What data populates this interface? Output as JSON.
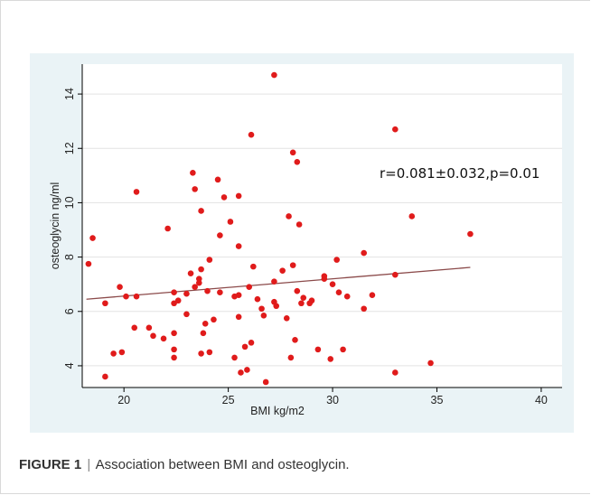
{
  "caption": {
    "label": "FIGURE 1",
    "separator": "|",
    "text": "Association between BMI and osteoglycin."
  },
  "chart_data": {
    "type": "scatter",
    "xlabel": "BMI kg/m2",
    "ylabel": "osteoglycin ng/ml",
    "xlim": [
      18,
      41
    ],
    "ylim": [
      3.2,
      15.1
    ],
    "xticks": [
      20,
      25,
      30,
      35,
      40
    ],
    "yticks": [
      4,
      6,
      8,
      10,
      12,
      14
    ],
    "grid": true,
    "annotation": "r=0.081±0.032,p=0.01",
    "point_color": "#e01b1b",
    "fit_line_color": "#8b4a4a",
    "fit_line": {
      "x": [
        18.2,
        36.6
      ],
      "y": [
        6.45,
        7.62
      ]
    },
    "points": [
      {
        "x": 18.3,
        "y": 7.75
      },
      {
        "x": 18.5,
        "y": 8.7
      },
      {
        "x": 19.1,
        "y": 3.6
      },
      {
        "x": 19.1,
        "y": 6.3
      },
      {
        "x": 19.5,
        "y": 4.45
      },
      {
        "x": 19.8,
        "y": 6.9
      },
      {
        "x": 19.9,
        "y": 4.5
      },
      {
        "x": 20.1,
        "y": 6.55
      },
      {
        "x": 20.5,
        "y": 5.4
      },
      {
        "x": 20.6,
        "y": 10.4
      },
      {
        "x": 20.6,
        "y": 6.55
      },
      {
        "x": 21.2,
        "y": 5.4
      },
      {
        "x": 21.4,
        "y": 5.1
      },
      {
        "x": 21.9,
        "y": 5.0
      },
      {
        "x": 22.1,
        "y": 9.05
      },
      {
        "x": 22.4,
        "y": 6.7
      },
      {
        "x": 22.4,
        "y": 6.3
      },
      {
        "x": 22.4,
        "y": 5.2
      },
      {
        "x": 22.4,
        "y": 4.6
      },
      {
        "x": 22.4,
        "y": 4.3
      },
      {
        "x": 22.6,
        "y": 6.4
      },
      {
        "x": 23.0,
        "y": 5.9
      },
      {
        "x": 23.0,
        "y": 6.65
      },
      {
        "x": 23.2,
        "y": 7.4
      },
      {
        "x": 23.3,
        "y": 11.1
      },
      {
        "x": 23.4,
        "y": 10.5
      },
      {
        "x": 23.4,
        "y": 6.9
      },
      {
        "x": 23.6,
        "y": 7.2
      },
      {
        "x": 23.6,
        "y": 7.05
      },
      {
        "x": 23.7,
        "y": 9.7
      },
      {
        "x": 23.7,
        "y": 7.55
      },
      {
        "x": 23.7,
        "y": 4.45
      },
      {
        "x": 23.8,
        "y": 5.2
      },
      {
        "x": 23.9,
        "y": 5.55
      },
      {
        "x": 24.0,
        "y": 6.75
      },
      {
        "x": 24.1,
        "y": 4.5
      },
      {
        "x": 24.1,
        "y": 7.9
      },
      {
        "x": 24.3,
        "y": 5.7
      },
      {
        "x": 24.5,
        "y": 10.85
      },
      {
        "x": 24.6,
        "y": 8.8
      },
      {
        "x": 24.6,
        "y": 6.7
      },
      {
        "x": 24.8,
        "y": 10.2
      },
      {
        "x": 25.1,
        "y": 9.3
      },
      {
        "x": 25.3,
        "y": 6.55
      },
      {
        "x": 25.3,
        "y": 4.3
      },
      {
        "x": 25.5,
        "y": 10.25
      },
      {
        "x": 25.5,
        "y": 8.4
      },
      {
        "x": 25.5,
        "y": 6.6
      },
      {
        "x": 25.5,
        "y": 5.8
      },
      {
        "x": 25.6,
        "y": 3.75
      },
      {
        "x": 25.8,
        "y": 4.7
      },
      {
        "x": 25.9,
        "y": 3.85
      },
      {
        "x": 26.0,
        "y": 6.9
      },
      {
        "x": 26.1,
        "y": 12.5
      },
      {
        "x": 26.1,
        "y": 4.85
      },
      {
        "x": 26.2,
        "y": 7.65
      },
      {
        "x": 26.4,
        "y": 6.45
      },
      {
        "x": 26.6,
        "y": 6.1
      },
      {
        "x": 26.7,
        "y": 5.85
      },
      {
        "x": 26.8,
        "y": 3.4
      },
      {
        "x": 27.2,
        "y": 14.7
      },
      {
        "x": 27.2,
        "y": 7.1
      },
      {
        "x": 27.2,
        "y": 6.35
      },
      {
        "x": 27.3,
        "y": 6.2
      },
      {
        "x": 27.6,
        "y": 7.5
      },
      {
        "x": 27.8,
        "y": 5.75
      },
      {
        "x": 27.9,
        "y": 9.5
      },
      {
        "x": 28.0,
        "y": 4.3
      },
      {
        "x": 28.1,
        "y": 11.85
      },
      {
        "x": 28.1,
        "y": 7.7
      },
      {
        "x": 28.2,
        "y": 4.95
      },
      {
        "x": 28.3,
        "y": 11.5
      },
      {
        "x": 28.3,
        "y": 6.75
      },
      {
        "x": 28.4,
        "y": 9.2
      },
      {
        "x": 28.5,
        "y": 6.3
      },
      {
        "x": 28.6,
        "y": 6.5
      },
      {
        "x": 28.9,
        "y": 6.3
      },
      {
        "x": 29.0,
        "y": 6.4
      },
      {
        "x": 29.3,
        "y": 4.6
      },
      {
        "x": 29.6,
        "y": 7.3
      },
      {
        "x": 29.6,
        "y": 7.2
      },
      {
        "x": 29.9,
        "y": 4.25
      },
      {
        "x": 30.0,
        "y": 7.0
      },
      {
        "x": 30.2,
        "y": 7.9
      },
      {
        "x": 30.3,
        "y": 6.7
      },
      {
        "x": 30.5,
        "y": 4.6
      },
      {
        "x": 30.7,
        "y": 6.55
      },
      {
        "x": 31.5,
        "y": 8.15
      },
      {
        "x": 31.5,
        "y": 6.1
      },
      {
        "x": 31.9,
        "y": 6.6
      },
      {
        "x": 33.0,
        "y": 12.7
      },
      {
        "x": 33.0,
        "y": 7.35
      },
      {
        "x": 33.0,
        "y": 3.75
      },
      {
        "x": 33.8,
        "y": 9.5
      },
      {
        "x": 34.7,
        "y": 4.1
      },
      {
        "x": 36.6,
        "y": 8.85
      }
    ]
  }
}
